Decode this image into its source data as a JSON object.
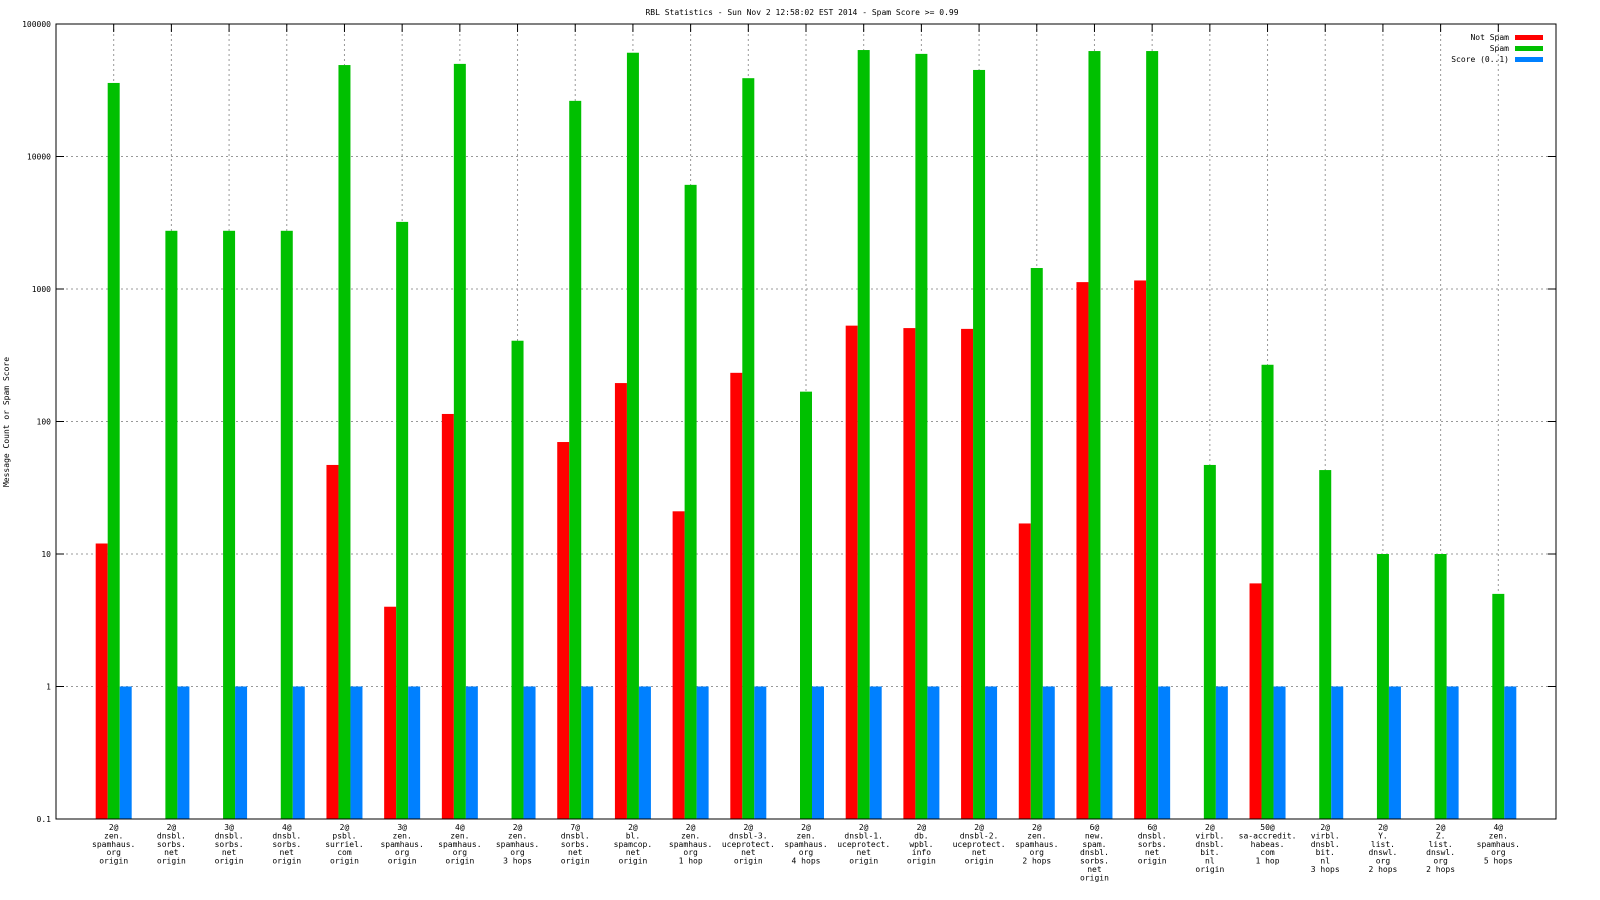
{
  "chart_data": {
    "type": "bar",
    "title": "RBL Statistics - Sun Nov  2 12:58:02 EST 2014 - Spam Score >= 0.99",
    "xlabel": "",
    "ylabel": "Message Count or Spam Score",
    "yscale": "log",
    "ylim": [
      0.1,
      100000
    ],
    "yticks": [
      "100000",
      "10000",
      "1000",
      "100",
      "10",
      "1",
      "0.1"
    ],
    "grid": true,
    "legend_position": "top-right",
    "categories": [
      [
        "2@",
        "zen.",
        "spamhaus.",
        "org",
        "origin"
      ],
      [
        "2@",
        "dnsbl.",
        "sorbs.",
        "net",
        "origin"
      ],
      [
        "3@",
        "dnsbl.",
        "sorbs.",
        "net",
        "origin"
      ],
      [
        "4@",
        "dnsbl.",
        "sorbs.",
        "net",
        "origin"
      ],
      [
        "2@",
        "psbl.",
        "surriel.",
        "com",
        "origin"
      ],
      [
        "3@",
        "zen.",
        "spamhaus.",
        "org",
        "origin"
      ],
      [
        "4@",
        "zen.",
        "spamhaus.",
        "org",
        "origin"
      ],
      [
        "2@",
        "zen.",
        "spamhaus.",
        "org",
        "3 hops"
      ],
      [
        "7@",
        "dnsbl.",
        "sorbs.",
        "net",
        "origin"
      ],
      [
        "2@",
        "bl.",
        "spamcop.",
        "net",
        "origin"
      ],
      [
        "2@",
        "zen.",
        "spamhaus.",
        "org",
        "1 hop"
      ],
      [
        "2@",
        "dnsbl-3.",
        "uceprotect.",
        "net",
        "origin"
      ],
      [
        "2@",
        "zen.",
        "spamhaus.",
        "org",
        "4 hops"
      ],
      [
        "2@",
        "dnsbl-1.",
        "uceprotect.",
        "net",
        "origin"
      ],
      [
        "2@",
        "db.",
        "wpbl.",
        "info",
        "origin"
      ],
      [
        "2@",
        "dnsbl-2.",
        "uceprotect.",
        "net",
        "origin"
      ],
      [
        "2@",
        "zen.",
        "spamhaus.",
        "org",
        "2 hops"
      ],
      [
        "6@",
        "new.",
        "spam.",
        "dnsbl.",
        "sorbs.",
        "net",
        "origin"
      ],
      [
        "6@",
        "dnsbl.",
        "sorbs.",
        "net",
        "origin"
      ],
      [
        "2@",
        "virbl.",
        "dnsbl.",
        "bit.",
        "nl",
        "origin"
      ],
      [
        "50@",
        "sa-accredit.",
        "habeas.",
        "com",
        "1 hop"
      ],
      [
        "2@",
        "virbl.",
        "dnsbl.",
        "bit.",
        "nl",
        "3 hops"
      ],
      [
        "2@",
        "Y.",
        "list.",
        "dnswl.",
        "org",
        "2 hops"
      ],
      [
        "2@",
        "Z.",
        "list.",
        "dnswl.",
        "org",
        "2 hops"
      ],
      [
        "4@",
        "zen.",
        "spamhaus.",
        "org",
        "5 hops"
      ]
    ],
    "series": [
      {
        "name": "Not Spam",
        "color": "#ff0000",
        "values": [
          12,
          0,
          0,
          0,
          47,
          4,
          114,
          0,
          70,
          195,
          21,
          233,
          0,
          529,
          507,
          500,
          17,
          1127,
          1160,
          0,
          6,
          0,
          0,
          0,
          0
        ]
      },
      {
        "name": "Spam",
        "color": "#00c000",
        "values": [
          35900,
          2750,
          2750,
          2750,
          49000,
          3210,
          50000,
          407,
          26300,
          60700,
          6110,
          39000,
          168,
          63600,
          59500,
          45000,
          1440,
          62500,
          62500,
          47,
          268,
          43,
          10,
          10,
          5
        ]
      },
      {
        "name": "Score (0..1)",
        "color": "#0080ff",
        "values": [
          1,
          1,
          1,
          1,
          1,
          1,
          1,
          1,
          1,
          1,
          1,
          1,
          1,
          1,
          1,
          1,
          1,
          1,
          1,
          1,
          1,
          1,
          1,
          1,
          1
        ]
      }
    ]
  }
}
